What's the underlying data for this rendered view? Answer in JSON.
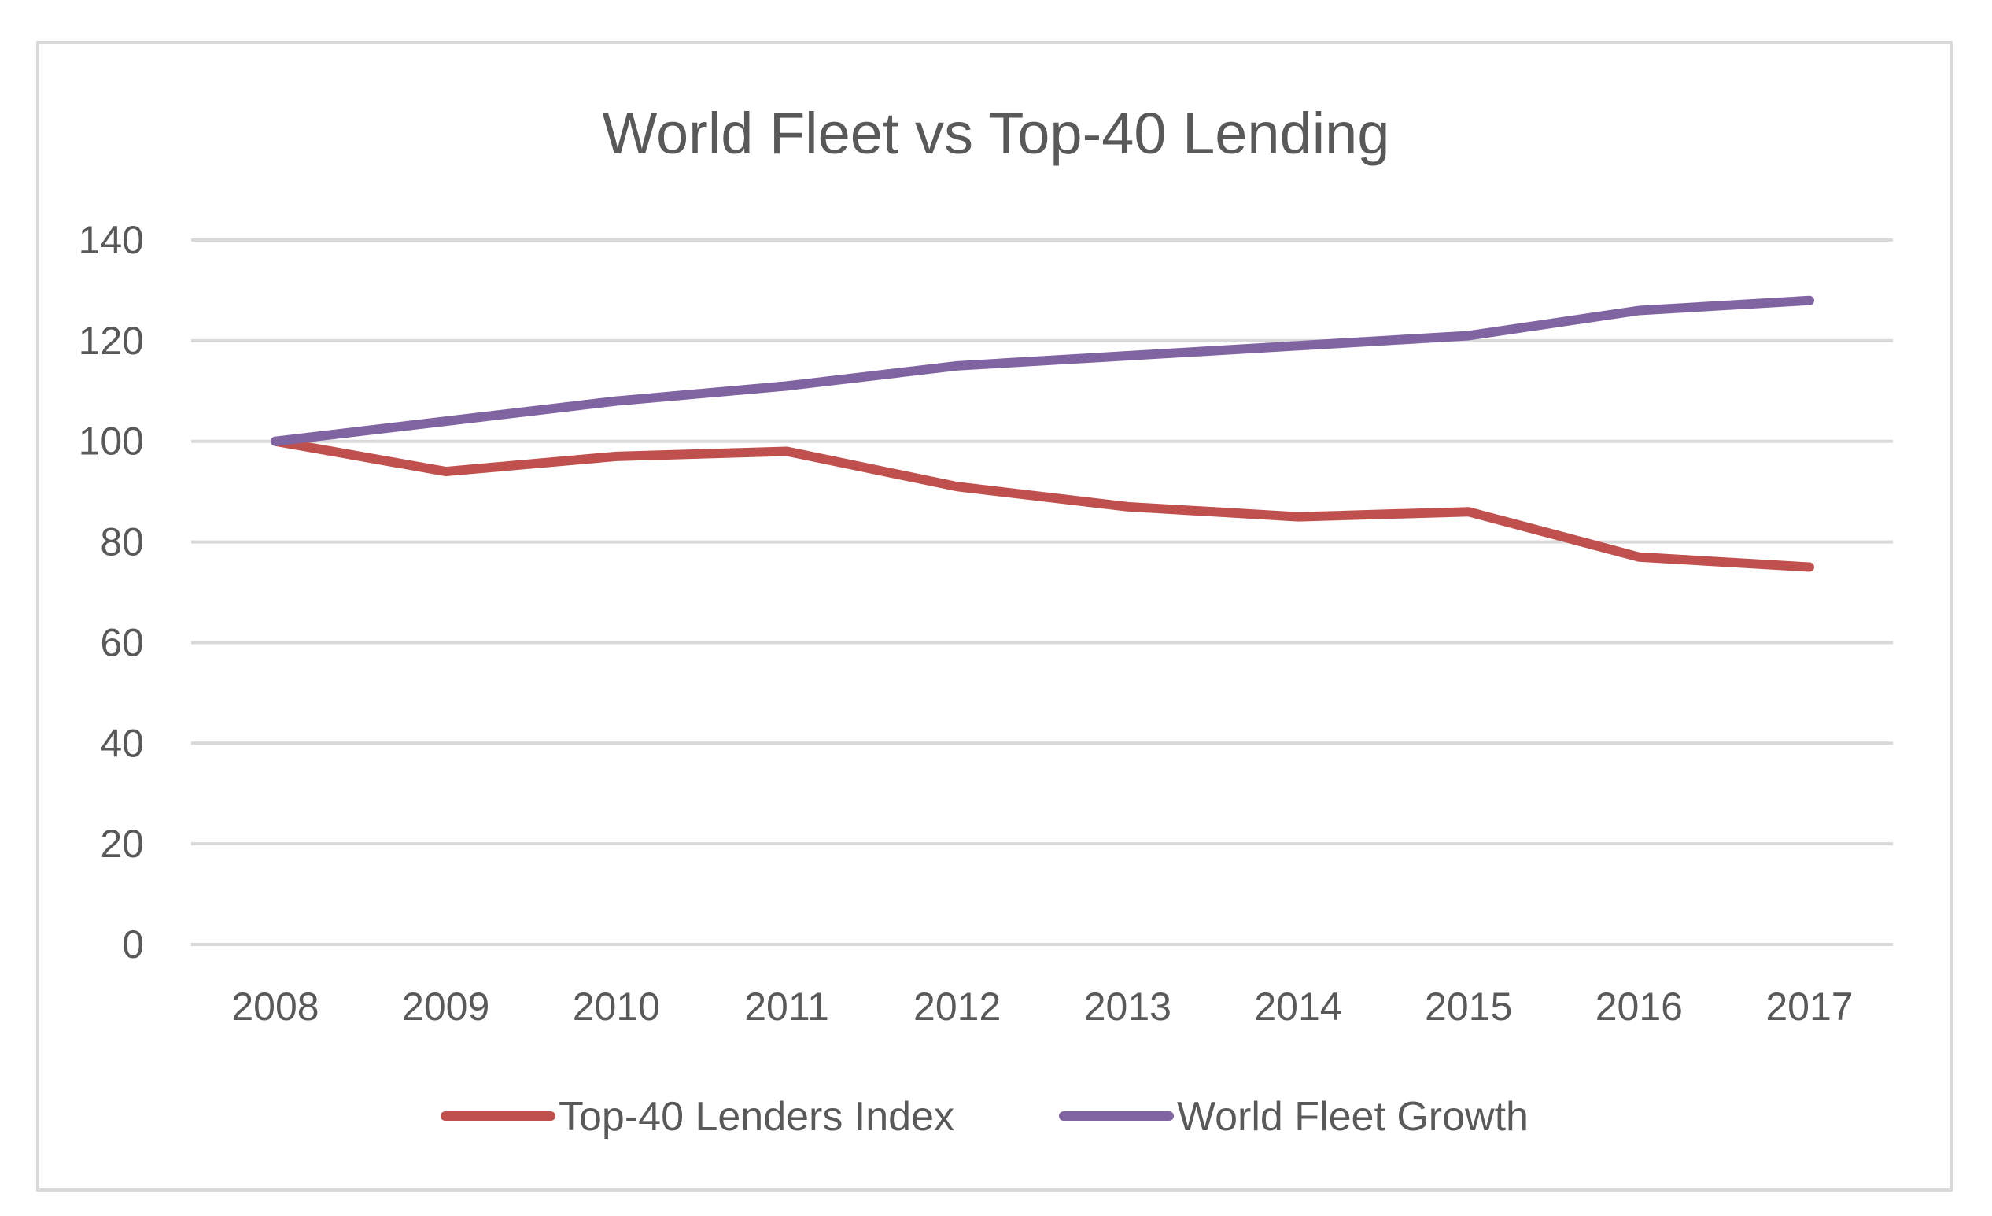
{
  "chart_data": {
    "type": "line",
    "title": "World Fleet vs Top-40 Lending",
    "xlabel": "",
    "ylabel": "",
    "categories": [
      "2008",
      "2009",
      "2010",
      "2011",
      "2012",
      "2013",
      "2014",
      "2015",
      "2016",
      "2017"
    ],
    "ylim": [
      0,
      140
    ],
    "yticks": [
      0,
      20,
      40,
      60,
      80,
      100,
      120,
      140
    ],
    "grid": true,
    "legend_position": "bottom",
    "series": [
      {
        "name": "Top-40 Lenders Index",
        "color": "#c0504d",
        "values": [
          100,
          94,
          97,
          98,
          91,
          87,
          85,
          86,
          77,
          75
        ]
      },
      {
        "name": "World Fleet Growth",
        "color": "#8064a2",
        "values": [
          100,
          104,
          108,
          111,
          115,
          117,
          119,
          121,
          126,
          128
        ]
      }
    ]
  }
}
